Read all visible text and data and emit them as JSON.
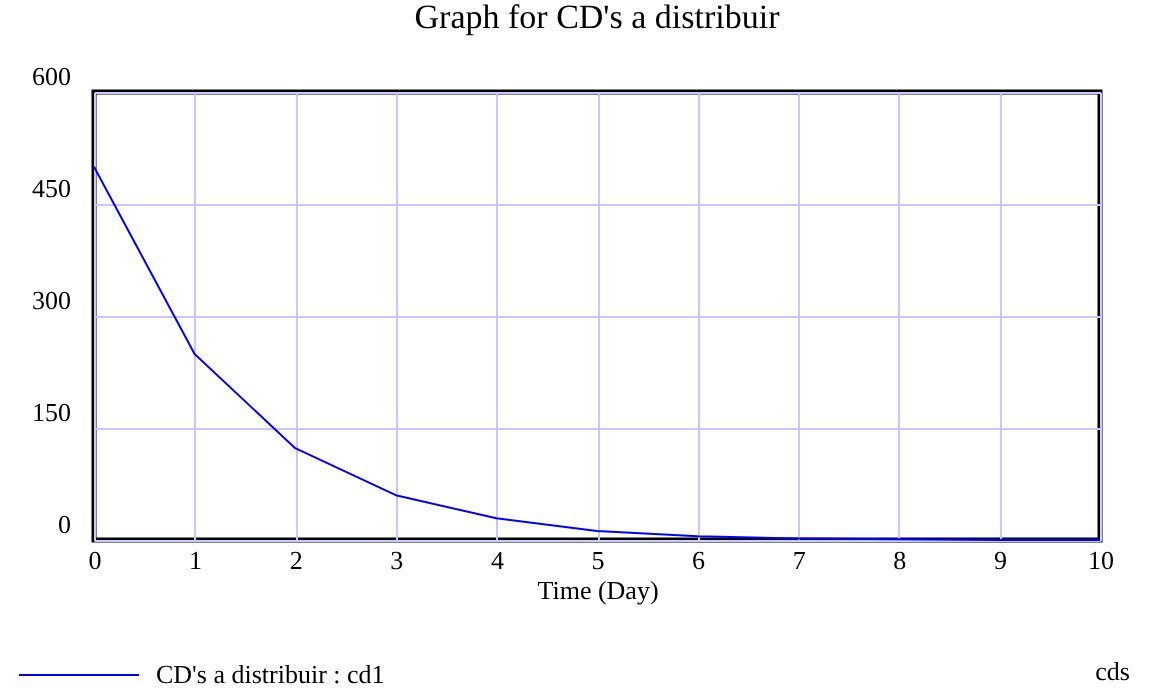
{
  "chart_data": {
    "type": "line",
    "title": "Graph for CD's a distribuir",
    "xlabel": "Time (Day)",
    "x": [
      0,
      1,
      2,
      3,
      4,
      5,
      6,
      7,
      8,
      9,
      10
    ],
    "series": [
      {
        "name": "CD's a distribuir : cd1",
        "color": "#0000ff",
        "values": [
          500,
          249,
          123,
          60,
          29,
          12,
          5,
          2,
          1,
          0,
          0
        ]
      }
    ],
    "annotations": [
      "cds"
    ],
    "xlim": [
      0,
      10
    ],
    "xticks": [
      0,
      1,
      2,
      3,
      4,
      5,
      6,
      7,
      8,
      9,
      10
    ],
    "ylim": [
      0,
      600
    ],
    "yticks": [
      0,
      150,
      300,
      450,
      600
    ],
    "grid": true,
    "legend": "bottom",
    "marker": "none",
    "line_style": "solid"
  }
}
